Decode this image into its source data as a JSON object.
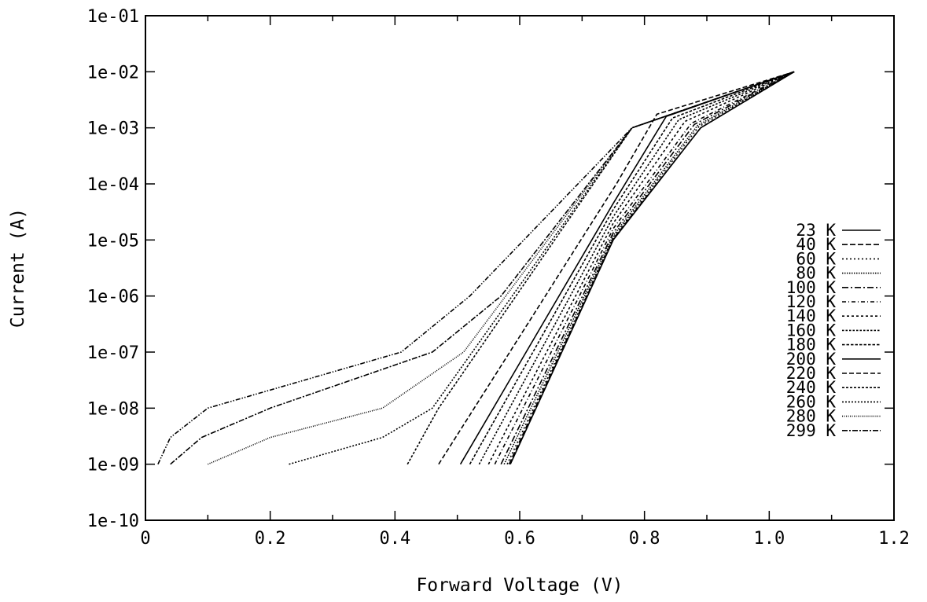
{
  "chart_data": {
    "type": "line",
    "title": "",
    "xlabel": "Forward Voltage (V)",
    "ylabel": "Current (A)",
    "xlim": [
      0,
      1.2
    ],
    "ylim": [
      1e-10,
      0.1
    ],
    "yscale": "log",
    "grid": false,
    "legend_position": "right",
    "x_ticks": [
      0,
      0.2,
      0.4,
      0.6,
      0.8,
      1.0,
      1.2
    ],
    "x_tick_labels": [
      "0",
      "0.2",
      "0.4",
      "0.6",
      "0.8",
      "1.0",
      "1.2"
    ],
    "y_ticks": [
      1e-10,
      1e-09,
      1e-08,
      1e-07,
      1e-06,
      1e-05,
      0.0001,
      0.001,
      0.01,
      0.1
    ],
    "y_tick_labels": [
      "1e-10",
      "1e-09",
      "1e-08",
      "1e-07",
      "1e-06",
      "1e-05",
      "1e-04",
      "1e-03",
      "1e-02",
      "1e-01"
    ],
    "series": [
      {
        "name": "23 K",
        "dash": "",
        "x": [
          0.585,
          0.75,
          0.89,
          1.04
        ],
        "y": [
          1e-09,
          1e-05,
          0.001,
          0.01
        ]
      },
      {
        "name": "40 K",
        "dash": "7,3",
        "x": [
          0.583,
          0.75,
          0.89,
          1.04
        ],
        "y": [
          1e-09,
          1.05e-05,
          0.001,
          0.01
        ]
      },
      {
        "name": "60 K",
        "dash": "2,3",
        "x": [
          0.58,
          0.75,
          0.887,
          1.04
        ],
        "y": [
          1e-09,
          1.1e-05,
          0.00105,
          0.01
        ]
      },
      {
        "name": "80 K",
        "dash": "1.5,1.5",
        "x": [
          0.575,
          0.75,
          0.885,
          1.04
        ],
        "y": [
          1e-09,
          1.2e-05,
          0.0011,
          0.01
        ]
      },
      {
        "name": "100 K",
        "dash": "8,3,2,3",
        "x": [
          0.57,
          0.75,
          0.88,
          1.04
        ],
        "y": [
          1e-09,
          1.35e-05,
          0.00115,
          0.01
        ]
      },
      {
        "name": "120 K",
        "dash": "5,3,1,3",
        "x": [
          0.56,
          0.75,
          0.875,
          1.04
        ],
        "y": [
          1e-09,
          1.6e-05,
          0.0012,
          0.01
        ]
      },
      {
        "name": "140 K",
        "dash": "3,3",
        "x": [
          0.55,
          0.75,
          0.865,
          1.04
        ],
        "y": [
          1e-09,
          2e-05,
          0.0013,
          0.01
        ]
      },
      {
        "name": "160 K",
        "dash": "2.5,2",
        "x": [
          0.535,
          0.75,
          0.855,
          1.04
        ],
        "y": [
          1e-09,
          2.6e-05,
          0.0014,
          0.01
        ]
      },
      {
        "name": "180 K",
        "dash": "3.5,2",
        "x": [
          0.52,
          0.75,
          0.845,
          1.04
        ],
        "y": [
          1e-09,
          3.5e-05,
          0.0015,
          0.01
        ]
      },
      {
        "name": "200 K",
        "dash": "",
        "x": [
          0.505,
          0.75,
          0.835,
          1.04
        ],
        "y": [
          1e-09,
          4.5e-05,
          0.0016,
          0.01
        ]
      },
      {
        "name": "220 K",
        "dash": "6,3",
        "x": [
          0.47,
          0.755,
          0.82,
          1.04
        ],
        "y": [
          1e-09,
          0.0001,
          0.00175,
          0.01
        ]
      },
      {
        "name": "240 K",
        "dash": "3,2",
        "x": [
          0.42,
          0.47,
          0.78,
          1.04
        ],
        "y": [
          1e-09,
          1e-08,
          0.001,
          0.01
        ]
      },
      {
        "name": "260 K",
        "dash": "2,2",
        "x": [
          0.23,
          0.38,
          0.46,
          0.78,
          1.04
        ],
        "y": [
          1e-09,
          3e-09,
          1e-08,
          0.001,
          0.01
        ]
      },
      {
        "name": "280 K",
        "dash": "1,1.5",
        "x": [
          0.1,
          0.2,
          0.38,
          0.51,
          0.78,
          1.04
        ],
        "y": [
          1e-09,
          3e-09,
          1e-08,
          1e-07,
          0.001,
          0.01
        ]
      },
      {
        "name": "299 K",
        "dash": "7,2,2,2",
        "x": [
          0.04,
          0.09,
          0.2,
          0.46,
          0.57,
          0.78,
          1.04
        ],
        "y": [
          1e-09,
          3e-09,
          1e-08,
          1e-07,
          1e-06,
          0.001,
          0.01
        ]
      },
      {
        "name": "",
        "dash": "6,2,1.5,2,1.5,2",
        "x": [
          0.02,
          0.04,
          0.1,
          0.41,
          0.52,
          0.78,
          1.04
        ],
        "y": [
          1e-09,
          3e-09,
          1e-08,
          1e-07,
          1e-06,
          0.001,
          0.01
        ]
      }
    ]
  }
}
